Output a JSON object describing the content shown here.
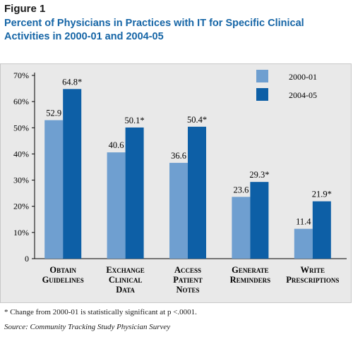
{
  "figure_label": "Figure 1",
  "title": "Percent of Physicians in Practices with IT for Specific Clinical Activities in 2000-01 and 2004-05",
  "chart_data": {
    "type": "bar",
    "categories": [
      [
        "Obtain",
        "Guidelines"
      ],
      [
        "Exchange",
        "Clinical",
        "Data"
      ],
      [
        "Access",
        "Patient",
        "Notes"
      ],
      [
        "Generate",
        "Reminders"
      ],
      [
        "Write",
        "Prescriptions"
      ]
    ],
    "series": [
      {
        "name": "2000-01",
        "color": "#6f9fd0",
        "values": [
          52.9,
          40.6,
          36.6,
          23.6,
          11.4
        ],
        "labels": [
          "52.9",
          "40.6",
          "36.6",
          "23.6",
          "11.4"
        ]
      },
      {
        "name": "2004-05",
        "color": "#0d5fa6",
        "values": [
          64.8,
          50.1,
          50.4,
          29.3,
          21.9
        ],
        "labels": [
          "64.8*",
          "50.1*",
          "50.4*",
          "29.3*",
          "21.9*"
        ]
      }
    ],
    "ylim": [
      0,
      70
    ],
    "yticks": [
      "0",
      "10%",
      "20%",
      "30%",
      "40%",
      "50%",
      "60%",
      "70%"
    ],
    "legend_position": "top-right",
    "grid": false
  },
  "footnote": "* Change from 2000-01 is statistically significant at p <.0001.",
  "source": "Source: Community Tracking Study Physician Survey"
}
